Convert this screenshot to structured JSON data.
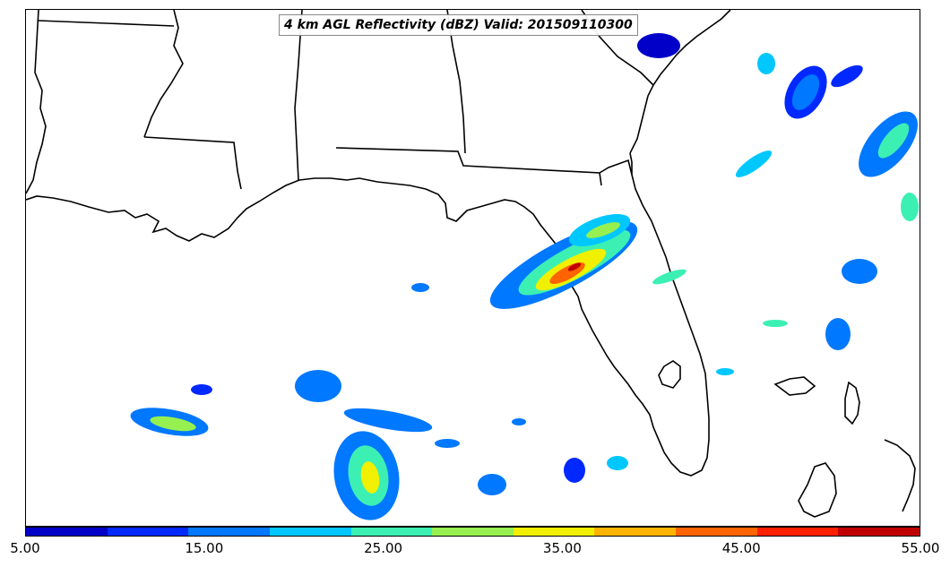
{
  "map": {
    "title": "4 km AGL Reflectivity (dBZ) Valid: 201509110300",
    "region": "Southeastern United States / Gulf of Mexico"
  },
  "colorbar": {
    "colors": [
      "#0000c8",
      "#0028ff",
      "#0078ff",
      "#00c8ff",
      "#3cf0b4",
      "#96f050",
      "#f0f000",
      "#ffb400",
      "#ff6400",
      "#ff2000",
      "#c00000"
    ],
    "ticks": [
      "5.00",
      "15.00",
      "25.00",
      "35.00",
      "45.00",
      "55.00"
    ]
  }
}
